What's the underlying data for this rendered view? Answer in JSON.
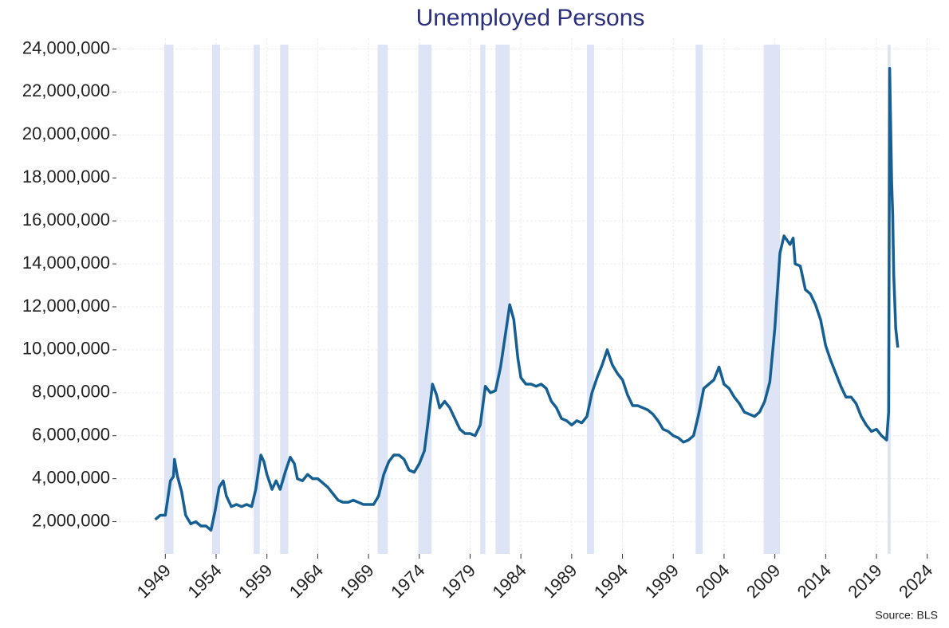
{
  "chart_data": {
    "type": "line",
    "title": "Unemployed Persons",
    "source": "Source: BLS",
    "color": "#155f93",
    "recession_color": "#dce4f6",
    "grid": true,
    "xlim": [
      1944.5,
      2025.2
    ],
    "ylim": [
      500000,
      24500000
    ],
    "xticks": [
      1949,
      1954,
      1959,
      1964,
      1969,
      1974,
      1979,
      1984,
      1989,
      1994,
      1999,
      2004,
      2009,
      2014,
      2019,
      2024
    ],
    "yticks": [
      {
        "value": 2000000,
        "label": "2,000,000"
      },
      {
        "value": 4000000,
        "label": "4,000,000"
      },
      {
        "value": 6000000,
        "label": "6,000,000"
      },
      {
        "value": 8000000,
        "label": "8,000,000"
      },
      {
        "value": 10000000,
        "label": "10,000,000"
      },
      {
        "value": 12000000,
        "label": "12,000,000"
      },
      {
        "value": 14000000,
        "label": "14,000,000"
      },
      {
        "value": 16000000,
        "label": "16,000,000"
      },
      {
        "value": 18000000,
        "label": "18,000,000"
      },
      {
        "value": 20000000,
        "label": "20,000,000"
      },
      {
        "value": 22000000,
        "label": "22,000,000"
      },
      {
        "value": 24000000,
        "label": "24,000,000"
      }
    ],
    "recessions": [
      [
        1948.9,
        1949.8
      ],
      [
        1953.6,
        1954.4
      ],
      [
        1957.7,
        1958.3
      ],
      [
        1960.3,
        1961.1
      ],
      [
        1969.9,
        1970.9
      ],
      [
        1973.9,
        1975.2
      ],
      [
        1980.0,
        1980.5
      ],
      [
        1981.5,
        1982.9
      ],
      [
        1990.5,
        1991.2
      ],
      [
        2001.2,
        2001.9
      ],
      [
        2007.9,
        2009.5
      ],
      [
        2020.1,
        2020.4
      ]
    ],
    "x": [
      1948.0,
      1948.5,
      1949.0,
      1949.5,
      1949.8,
      1949.9,
      1950.2,
      1950.6,
      1951.0,
      1951.5,
      1952.0,
      1952.5,
      1953.0,
      1953.5,
      1953.9,
      1954.3,
      1954.7,
      1955.0,
      1955.5,
      1956.0,
      1956.5,
      1957.0,
      1957.5,
      1957.9,
      1958.4,
      1958.7,
      1959.0,
      1959.5,
      1959.9,
      1960.3,
      1960.8,
      1961.3,
      1961.7,
      1962.0,
      1962.5,
      1963.0,
      1963.5,
      1964.0,
      1964.5,
      1965.0,
      1965.5,
      1966.0,
      1966.5,
      1967.0,
      1967.5,
      1968.0,
      1968.5,
      1969.0,
      1969.5,
      1970.0,
      1970.5,
      1971.0,
      1971.5,
      1972.0,
      1972.5,
      1973.0,
      1973.5,
      1974.0,
      1974.5,
      1974.9,
      1975.3,
      1975.7,
      1976.0,
      1976.5,
      1977.0,
      1977.5,
      1978.0,
      1978.5,
      1979.0,
      1979.5,
      1980.0,
      1980.5,
      1981.0,
      1981.5,
      1982.0,
      1982.5,
      1982.9,
      1983.3,
      1983.7,
      1984.0,
      1984.5,
      1985.0,
      1985.5,
      1986.0,
      1986.5,
      1987.0,
      1987.5,
      1988.0,
      1988.5,
      1989.0,
      1989.5,
      1990.0,
      1990.5,
      1991.0,
      1991.5,
      1992.0,
      1992.5,
      1993.0,
      1993.5,
      1994.0,
      1994.5,
      1995.0,
      1995.5,
      1996.0,
      1996.5,
      1997.0,
      1997.5,
      1998.0,
      1998.5,
      1999.0,
      1999.5,
      2000.0,
      2000.5,
      2001.0,
      2001.5,
      2002.0,
      2002.5,
      2003.0,
      2003.5,
      2004.0,
      2004.5,
      2005.0,
      2005.5,
      2006.0,
      2006.5,
      2007.0,
      2007.5,
      2008.0,
      2008.5,
      2009.0,
      2009.5,
      2009.9,
      2010.5,
      2010.8,
      2011.0,
      2011.5,
      2012.0,
      2012.5,
      2013.0,
      2013.5,
      2014.0,
      2014.5,
      2015.0,
      2015.5,
      2016.0,
      2016.5,
      2017.0,
      2017.5,
      2018.0,
      2018.5,
      2019.0,
      2019.5,
      2020.0,
      2020.2,
      2020.3,
      2020.5,
      2020.6,
      2020.7,
      2020.8,
      2020.9,
      2021.1
    ],
    "values": [
      2100000,
      2300000,
      2300000,
      3900000,
      4100000,
      4900000,
      4100000,
      3400000,
      2300000,
      1900000,
      2000000,
      1800000,
      1800000,
      1600000,
      2500000,
      3600000,
      3900000,
      3200000,
      2700000,
      2800000,
      2700000,
      2800000,
      2700000,
      3500000,
      5100000,
      4800000,
      4200000,
      3500000,
      3900000,
      3500000,
      4300000,
      5000000,
      4700000,
      4000000,
      3900000,
      4200000,
      4000000,
      4000000,
      3800000,
      3600000,
      3300000,
      3000000,
      2900000,
      2900000,
      3000000,
      2900000,
      2800000,
      2800000,
      2800000,
      3200000,
      4200000,
      4800000,
      5100000,
      5100000,
      4900000,
      4400000,
      4300000,
      4700000,
      5300000,
      6800000,
      8400000,
      7900000,
      7300000,
      7600000,
      7300000,
      6800000,
      6300000,
      6100000,
      6100000,
      6000000,
      6500000,
      8300000,
      8000000,
      8100000,
      9200000,
      10800000,
      12100000,
      11400000,
      9600000,
      8700000,
      8400000,
      8400000,
      8300000,
      8400000,
      8200000,
      7600000,
      7300000,
      6800000,
      6700000,
      6500000,
      6700000,
      6600000,
      6900000,
      8000000,
      8700000,
      9300000,
      10000000,
      9300000,
      8900000,
      8600000,
      7900000,
      7400000,
      7400000,
      7300000,
      7200000,
      7000000,
      6700000,
      6300000,
      6200000,
      6000000,
      5900000,
      5700000,
      5800000,
      6000000,
      7000000,
      8200000,
      8400000,
      8600000,
      9200000,
      8400000,
      8200000,
      7800000,
      7500000,
      7100000,
      7000000,
      6900000,
      7100000,
      7600000,
      8500000,
      11000000,
      14500000,
      15300000,
      14900000,
      15200000,
      14000000,
      13900000,
      12800000,
      12600000,
      12100000,
      11400000,
      10200000,
      9500000,
      8900000,
      8300000,
      7800000,
      7800000,
      7500000,
      6900000,
      6500000,
      6200000,
      6300000,
      6000000,
      5800000,
      7100000,
      23100000,
      17800000,
      16300000,
      13500000,
      12200000,
      11000000,
      10100000
    ]
  }
}
